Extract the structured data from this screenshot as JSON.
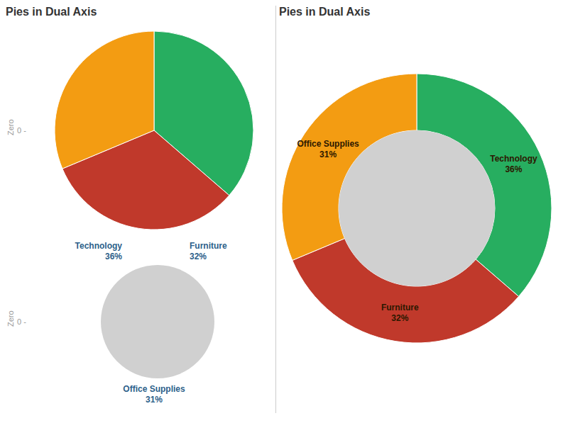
{
  "chart_data": [
    {
      "type": "pie",
      "title": "Pies in Dual Axis",
      "categories": [
        "Technology",
        "Furniture",
        "Office Supplies"
      ],
      "values": [
        36,
        32,
        31
      ],
      "value_labels": [
        "36%",
        "32%",
        "31%"
      ],
      "colors": [
        "#27ae60",
        "#c0392b",
        "#f39c12"
      ],
      "data_labels": true,
      "annotations": [
        "Zero",
        "0 -"
      ]
    },
    {
      "type": "donut",
      "title": "Pies in Dual Axis",
      "categories": [
        "Technology",
        "Furniture",
        "Office Supplies"
      ],
      "values": [
        36,
        32,
        31
      ],
      "value_labels": [
        "36%",
        "32%",
        "31%"
      ],
      "colors": [
        "#27ae60",
        "#c0392b",
        "#f39c12"
      ],
      "data_labels": true
    }
  ]
}
